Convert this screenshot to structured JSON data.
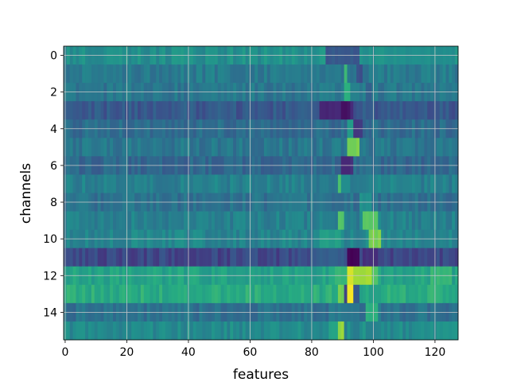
{
  "chart_data": {
    "type": "heatmap",
    "title": "",
    "xlabel": "features",
    "ylabel": "channels",
    "n_rows": 16,
    "n_cols": 128,
    "xlim": [
      -0.5,
      127.5
    ],
    "ylim": [
      15.5,
      -0.5
    ],
    "x_ticks": [
      0,
      20,
      40,
      60,
      80,
      100,
      120
    ],
    "y_ticks": [
      0,
      2,
      4,
      6,
      8,
      10,
      12,
      14
    ],
    "grid": true,
    "colormap": "viridis",
    "value_range": [
      0,
      1
    ],
    "row_base": [
      0.5,
      0.42,
      0.4,
      0.28,
      0.36,
      0.4,
      0.34,
      0.44,
      0.38,
      0.44,
      0.46,
      0.22,
      0.58,
      0.62,
      0.38,
      0.48
    ],
    "hotspots": [
      {
        "row": 0,
        "x_start": 85,
        "x_end": 95,
        "value": 0.28
      },
      {
        "row": 0,
        "x_start": 104,
        "x_end": 126,
        "value": 0.5
      },
      {
        "row": 1,
        "x_start": 91,
        "x_end": 91,
        "value": 0.68
      },
      {
        "row": 1,
        "x_start": 95,
        "x_end": 96,
        "value": 0.25
      },
      {
        "row": 2,
        "x_start": 91,
        "x_end": 92,
        "value": 0.65
      },
      {
        "row": 2,
        "x_start": 98,
        "x_end": 99,
        "value": 0.32
      },
      {
        "row": 3,
        "x_start": 83,
        "x_end": 93,
        "value": 0.12
      },
      {
        "row": 3,
        "x_start": 90,
        "x_end": 92,
        "value": 0.05
      },
      {
        "row": 4,
        "x_start": 92,
        "x_end": 93,
        "value": 0.55
      },
      {
        "row": 4,
        "x_start": 94,
        "x_end": 96,
        "value": 0.18
      },
      {
        "row": 5,
        "x_start": 92,
        "x_end": 95,
        "value": 0.8
      },
      {
        "row": 6,
        "x_start": 90,
        "x_end": 93,
        "value": 0.12
      },
      {
        "row": 7,
        "x_start": 89,
        "x_end": 89,
        "value": 0.72
      },
      {
        "row": 8,
        "x_start": 96,
        "x_end": 99,
        "value": 0.5
      },
      {
        "row": 9,
        "x_start": 89,
        "x_end": 90,
        "value": 0.72
      },
      {
        "row": 9,
        "x_start": 97,
        "x_end": 101,
        "value": 0.75
      },
      {
        "row": 10,
        "x_start": 83,
        "x_end": 89,
        "value": 0.56
      },
      {
        "row": 10,
        "x_start": 99,
        "x_end": 102,
        "value": 0.8
      },
      {
        "row": 11,
        "x_start": 80,
        "x_end": 90,
        "value": 0.3
      },
      {
        "row": 11,
        "x_start": 92,
        "x_end": 95,
        "value": 0.02
      },
      {
        "row": 11,
        "x_start": 97,
        "x_end": 101,
        "value": 0.15
      },
      {
        "row": 12,
        "x_start": 88,
        "x_end": 91,
        "value": 0.66
      },
      {
        "row": 12,
        "x_start": 92,
        "x_end": 93,
        "value": 0.95
      },
      {
        "row": 12,
        "x_start": 94,
        "x_end": 99,
        "value": 0.86
      },
      {
        "row": 12,
        "x_start": 100,
        "x_end": 101,
        "value": 0.72
      },
      {
        "row": 12,
        "x_start": 119,
        "x_end": 125,
        "value": 0.66
      },
      {
        "row": 13,
        "x_start": 89,
        "x_end": 90,
        "value": 0.8
      },
      {
        "row": 13,
        "x_start": 91,
        "x_end": 91,
        "value": 0.2
      },
      {
        "row": 13,
        "x_start": 92,
        "x_end": 93,
        "value": 0.98
      },
      {
        "row": 13,
        "x_start": 94,
        "x_end": 95,
        "value": 0.3
      },
      {
        "row": 14,
        "x_start": 98,
        "x_end": 101,
        "value": 0.65
      },
      {
        "row": 15,
        "x_start": 89,
        "x_end": 90,
        "value": 0.85
      },
      {
        "row": 15,
        "x_start": 86,
        "x_end": 88,
        "value": 0.6
      }
    ]
  }
}
